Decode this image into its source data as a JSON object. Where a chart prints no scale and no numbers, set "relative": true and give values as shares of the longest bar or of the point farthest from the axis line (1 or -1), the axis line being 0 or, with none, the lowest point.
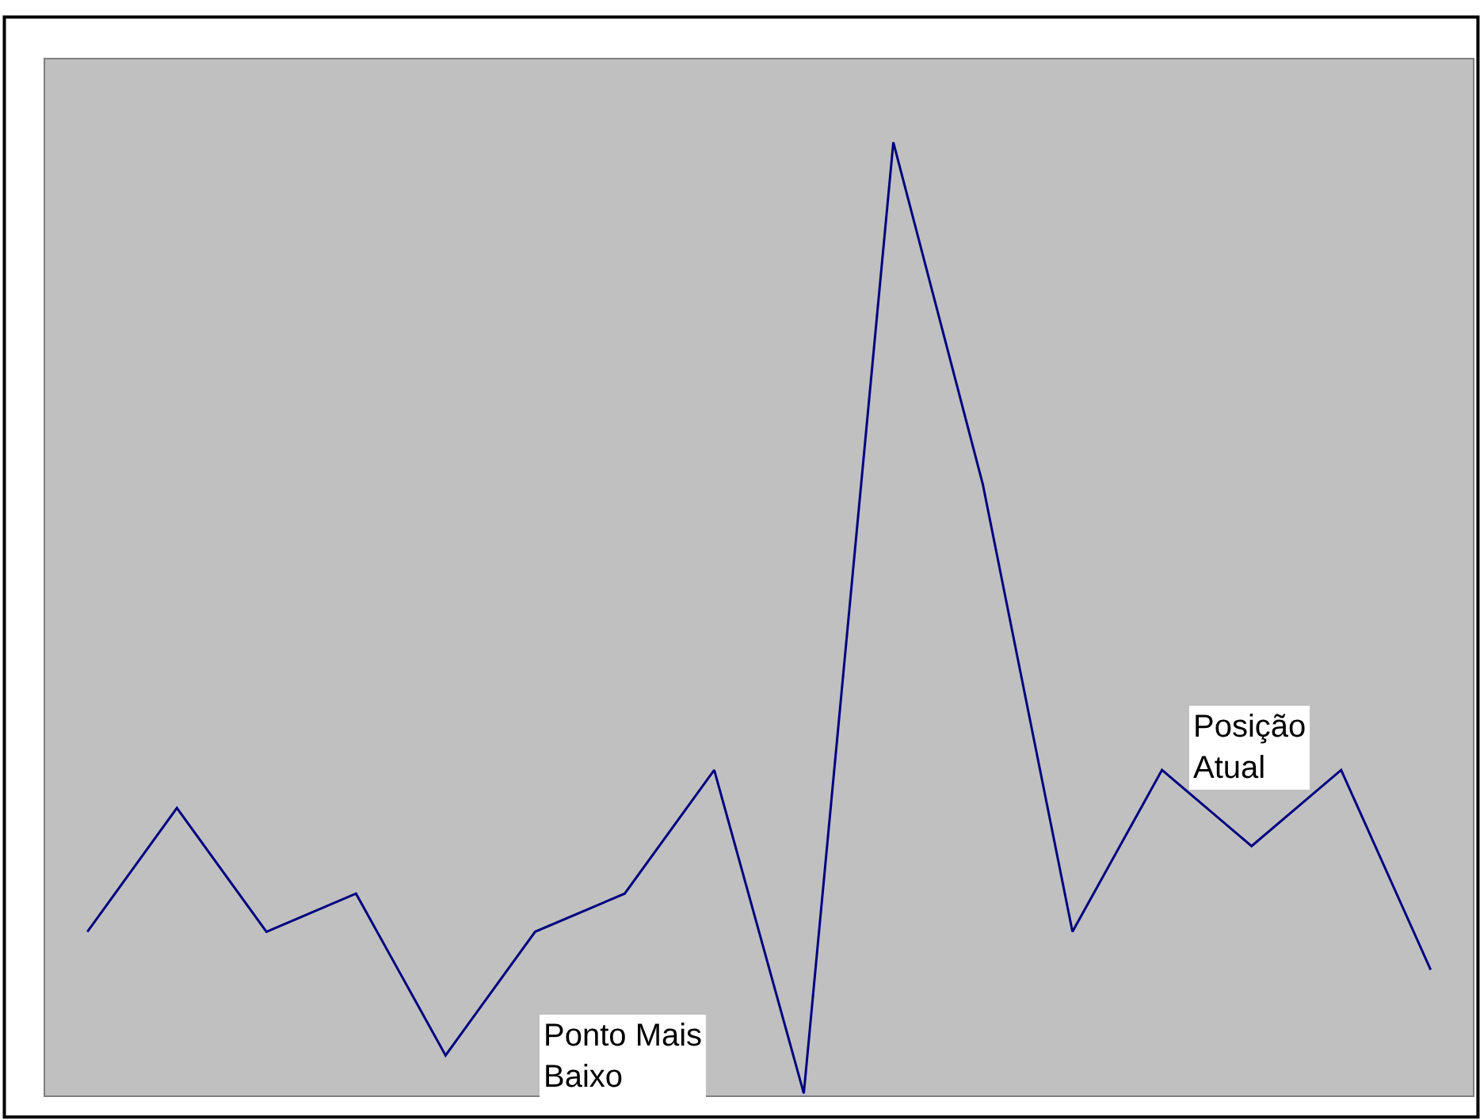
{
  "chart_data": {
    "type": "line",
    "relative": true,
    "categories": [
      null,
      null,
      null,
      null,
      null,
      null,
      null,
      null,
      null,
      null,
      null,
      null,
      null,
      null,
      null,
      null
    ],
    "series": [
      {
        "color": "#000080",
        "values": [
          0.17,
          0.3,
          0.17,
          0.21,
          0.04,
          0.17,
          0.21,
          0.34,
          0,
          1,
          0.64,
          0.17,
          0.34,
          0.26,
          0.34,
          0.13
        ]
      }
    ],
    "annotations": [
      "Ponto Mais Baixo",
      "Posição Atual"
    ],
    "legend": false,
    "marker": "none",
    "line_style": "solid"
  }
}
